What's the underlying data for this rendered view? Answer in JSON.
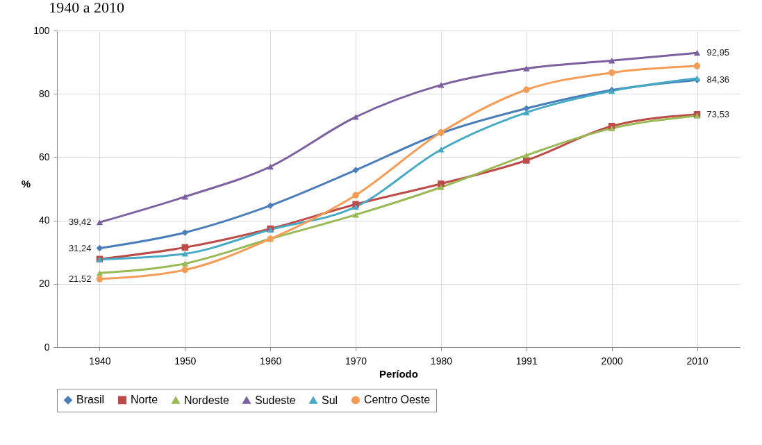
{
  "chart_data": {
    "type": "line",
    "title": "1940 a 2010",
    "xlabel": "Período",
    "ylabel": "%",
    "categories": [
      "1940",
      "1950",
      "1960",
      "1970",
      "1980",
      "1991",
      "2000",
      "2010"
    ],
    "series": [
      {
        "name": "Brasil",
        "color": "#4a7ebb",
        "marker": "diamond",
        "values": [
          31.24,
          36.2,
          44.7,
          55.9,
          67.6,
          75.4,
          81.2,
          84.36
        ],
        "value_labels": [
          "31,24",
          null,
          null,
          null,
          null,
          null,
          null,
          "84,36"
        ]
      },
      {
        "name": "Norte",
        "color": "#be4b48",
        "marker": "square",
        "values": [
          27.8,
          31.5,
          37.4,
          45.1,
          51.6,
          59.0,
          69.8,
          73.53
        ],
        "value_labels": [
          null,
          null,
          null,
          null,
          null,
          null,
          null,
          "73,53"
        ]
      },
      {
        "name": "Nordeste",
        "color": "#98b954",
        "marker": "triangle",
        "values": [
          23.4,
          26.4,
          34.2,
          41.8,
          50.5,
          60.6,
          69.1,
          73.1
        ]
      },
      {
        "name": "Sudeste",
        "color": "#7d60a0",
        "marker": "triangle",
        "values": [
          39.42,
          47.5,
          57.0,
          72.7,
          82.8,
          88.0,
          90.5,
          92.95
        ],
        "value_labels": [
          "39,42",
          null,
          null,
          null,
          null,
          null,
          null,
          "92,95"
        ]
      },
      {
        "name": "Sul",
        "color": "#46aac5",
        "marker": "triangle",
        "values": [
          27.7,
          29.5,
          37.1,
          44.3,
          62.4,
          74.1,
          80.9,
          84.9
        ]
      },
      {
        "name": "Centro Oeste",
        "color": "#f59d56",
        "marker": "circle",
        "values": [
          21.52,
          24.4,
          34.2,
          48.0,
          67.8,
          81.3,
          86.7,
          88.8
        ],
        "value_labels": [
          "21,52",
          null,
          null,
          null,
          null,
          null,
          null,
          null
        ]
      }
    ],
    "ylim": [
      0,
      100
    ],
    "yticks": [
      0,
      20,
      40,
      60,
      80,
      100
    ],
    "grid": true,
    "legend": "bottom"
  }
}
